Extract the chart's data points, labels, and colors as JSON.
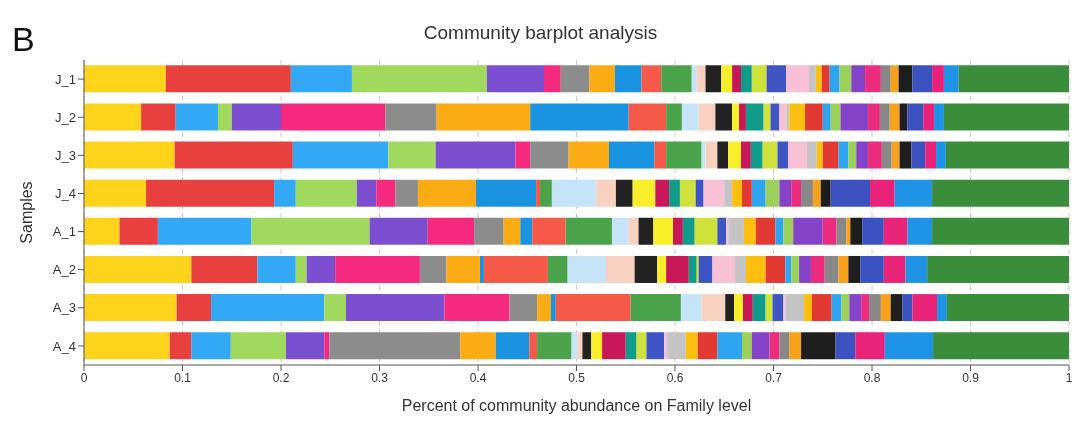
{
  "chart_data": {
    "type": "bar",
    "orientation": "horizontal",
    "stacked": true,
    "title": "Community barplot analysis",
    "xlabel": "Percent of community abundance on Family level",
    "ylabel": "Samples",
    "annotations": [
      "B"
    ],
    "categories": [
      "J_1",
      "J_2",
      "J_3",
      "J_4",
      "A_1",
      "A_2",
      "A_3",
      "A_4"
    ],
    "xlim": [
      0,
      1
    ],
    "xticks": [
      0,
      0.1,
      0.2,
      0.3,
      0.4,
      0.5,
      0.6,
      0.7,
      0.8,
      0.9,
      1
    ],
    "grid": "x",
    "legend": false,
    "series": [
      {
        "color": "#fdd31c",
        "values": [
          0.083,
          0.058,
          0.092,
          0.063,
          0.036,
          0.109,
          0.094,
          0.087
        ]
      },
      {
        "color": "#e8403f",
        "values": [
          0.127,
          0.035,
          0.12,
          0.13,
          0.039,
          0.067,
          0.035,
          0.022
        ]
      },
      {
        "color": "#33a8f5",
        "values": [
          0.062,
          0.043,
          0.097,
          0.022,
          0.095,
          0.039,
          0.115,
          0.04
        ]
      },
      {
        "color": "#a0d95d",
        "values": [
          0.137,
          0.014,
          0.048,
          0.062,
          0.12,
          0.011,
          0.022,
          0.056
        ]
      },
      {
        "color": "#7b4fcf",
        "values": [
          0.058,
          0.05,
          0.081,
          0.02,
          0.059,
          0.029,
          0.1,
          0.039
        ]
      },
      {
        "color": "#f52a7e",
        "values": [
          0.017,
          0.106,
          0.015,
          0.019,
          0.047,
          0.086,
          0.066,
          0.005
        ]
      },
      {
        "color": "#8c8c8c",
        "values": [
          0.029,
          0.052,
          0.039,
          0.023,
          0.03,
          0.027,
          0.028,
          0.133
        ]
      },
      {
        "color": "#fbab14",
        "values": [
          0.026,
          0.095,
          0.041,
          0.059,
          0.017,
          0.034,
          0.014,
          0.036
        ]
      },
      {
        "color": "#1a94e0",
        "values": [
          0.027,
          0.1,
          0.046,
          0.061,
          0.012,
          0.004,
          0.005,
          0.034
        ]
      },
      {
        "color": "#f55a48",
        "values": [
          0.02,
          0.038,
          0.012,
          0.004,
          0.034,
          0.065,
          0.076,
          0.008
        ]
      },
      {
        "color": "#4aa34a",
        "values": [
          0.031,
          0.016,
          0.036,
          0.012,
          0.047,
          0.02,
          0.051,
          0.035
        ]
      },
      {
        "color": "#c6e4f7",
        "values": [
          0.005,
          0.017,
          0.004,
          0.045,
          0.017,
          0.039,
          0.021,
          0.006
        ]
      },
      {
        "color": "#f9d1c1",
        "values": [
          0.009,
          0.017,
          0.012,
          0.02,
          0.01,
          0.029,
          0.024,
          0.005
        ]
      },
      {
        "color": "#222222",
        "values": [
          0.016,
          0.017,
          0.011,
          0.017,
          0.015,
          0.023,
          0.009,
          0.009
        ]
      },
      {
        "color": "#f8ef2a",
        "values": [
          0.011,
          0.007,
          0.013,
          0.023,
          0.02,
          0.009,
          0.009,
          0.011
        ]
      },
      {
        "color": "#c8185a",
        "values": [
          0.009,
          0.007,
          0.01,
          0.014,
          0.01,
          0.023,
          0.01,
          0.024
        ]
      },
      {
        "color": "#119b8a",
        "values": [
          0.011,
          0.018,
          0.012,
          0.011,
          0.012,
          0.008,
          0.013,
          0.011
        ]
      },
      {
        "color": "#cfe23b",
        "values": [
          0.015,
          0.007,
          0.015,
          0.016,
          0.023,
          0.002,
          0.007,
          0.01
        ]
      },
      {
        "color": "#3f55c4",
        "values": [
          0.02,
          0.009,
          0.011,
          0.008,
          0.009,
          0.014,
          0.011,
          0.018
        ]
      },
      {
        "color": "#f7c0d5",
        "values": [
          0.023,
          0.007,
          0.019,
          0.021,
          0.002,
          0.023,
          0.002,
          0.003
        ]
      },
      {
        "color": "#c4c4c4",
        "values": [
          0.007,
          0.003,
          0.01,
          0.008,
          0.016,
          0.011,
          0.019,
          0.019
        ]
      },
      {
        "color": "#fcbf10",
        "values": [
          0.006,
          0.016,
          0.006,
          0.01,
          0.012,
          0.02,
          0.008,
          0.012
        ]
      },
      {
        "color": "#e23a32",
        "values": [
          0.008,
          0.018,
          0.016,
          0.01,
          0.02,
          0.02,
          0.02,
          0.02
        ]
      },
      {
        "color": "#2fa5f2",
        "values": [
          0.01,
          0.008,
          0.01,
          0.014,
          0.008,
          0.006,
          0.01,
          0.025
        ]
      },
      {
        "color": "#9bd05a",
        "values": [
          0.012,
          0.01,
          0.008,
          0.014,
          0.01,
          0.008,
          0.008,
          0.01
        ]
      },
      {
        "color": "#8443c9",
        "values": [
          0.014,
          0.028,
          0.012,
          0.012,
          0.03,
          0.012,
          0.012,
          0.018
        ]
      },
      {
        "color": "#ec2d7d",
        "values": [
          0.016,
          0.012,
          0.014,
          0.01,
          0.014,
          0.014,
          0.008,
          0.01
        ]
      },
      {
        "color": "#888888",
        "values": [
          0.01,
          0.01,
          0.01,
          0.012,
          0.01,
          0.014,
          0.012,
          0.01
        ]
      },
      {
        "color": "#f7a21a",
        "values": [
          0.008,
          0.01,
          0.008,
          0.008,
          0.004,
          0.01,
          0.01,
          0.012
        ]
      },
      {
        "color": "#1e1e1e",
        "values": [
          0.014,
          0.008,
          0.012,
          0.01,
          0.012,
          0.012,
          0.012,
          0.035
        ]
      },
      {
        "color": "#3b52c0",
        "values": [
          0.02,
          0.016,
          0.014,
          0.04,
          0.022,
          0.024,
          0.01,
          0.02
        ]
      },
      {
        "color": "#e9237a",
        "values": [
          0.012,
          0.011,
          0.011,
          0.025,
          0.024,
          0.022,
          0.025,
          0.03
        ]
      },
      {
        "color": "#1f93e6",
        "values": [
          0.015,
          0.01,
          0.01,
          0.038,
          0.025,
          0.022,
          0.01,
          0.049
        ]
      },
      {
        "color": "#3a8d3a",
        "values": [
          0.112,
          0.127,
          0.125,
          0.139,
          0.139,
          0.144,
          0.124,
          0.138
        ]
      }
    ]
  }
}
